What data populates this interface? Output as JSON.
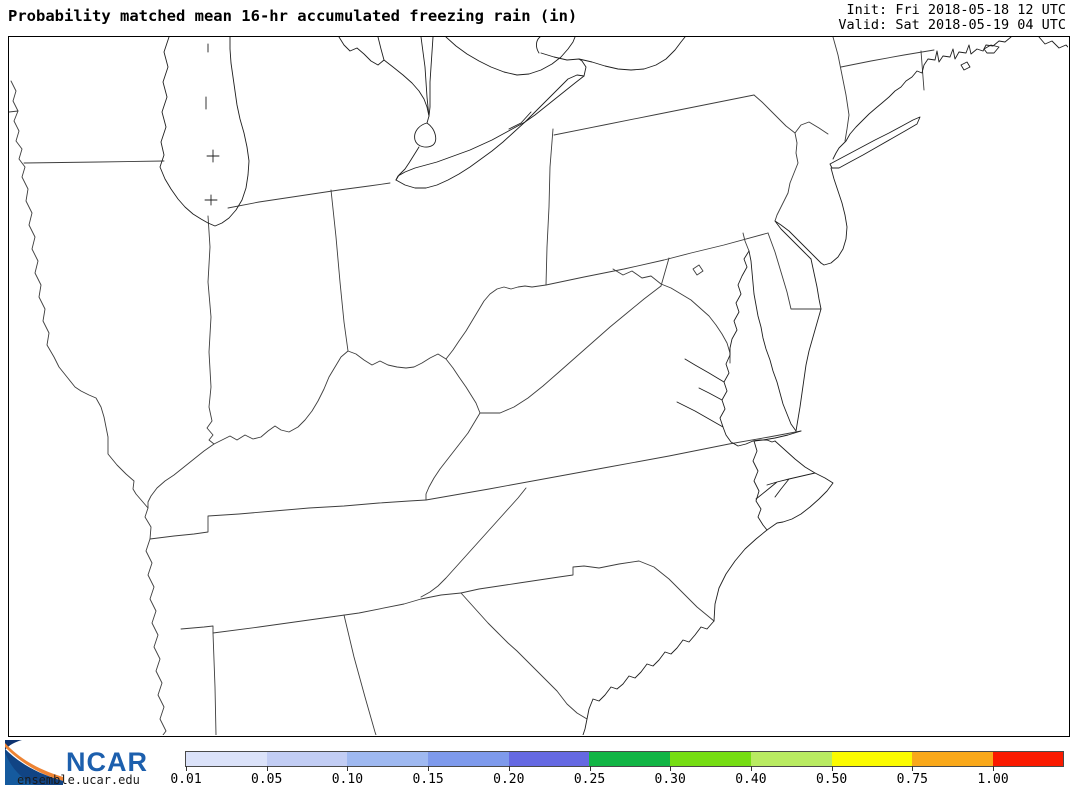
{
  "header": {
    "title": "Probability matched mean 16-hr accumulated freezing rain (in)",
    "init": "Init: Fri 2018-05-18 12 UTC",
    "valid": "Valid: Sat 2018-05-19 04 UTC"
  },
  "map": {
    "region": "eastern United States state outlines, Great Lakes to Georgia coast",
    "field_note": "no shaded freezing-rain values plotted"
  },
  "footer": {
    "logo_text": "NCAR",
    "site": "ensemble.ucar.edu"
  },
  "colorbar": {
    "ticks": [
      "0.01",
      "0.05",
      "0.10",
      "0.15",
      "0.20",
      "0.25",
      "0.30",
      "0.40",
      "0.50",
      "0.75",
      "1.00"
    ],
    "colors": [
      "#dbe2f9",
      "#c2cdf4",
      "#9fb9f1",
      "#7e9aec",
      "#6569e2",
      "#12b545",
      "#76dd13",
      "#b9eb62",
      "#fbfb00",
      "#f9a81a",
      "#fa1a00"
    ],
    "outline_color": "#4a4a4a",
    "units": "in"
  },
  "brand": {
    "ncar_blue": "#1c5fad",
    "logo_navy": "#0e3370",
    "logo_orange": "#ee8434"
  }
}
